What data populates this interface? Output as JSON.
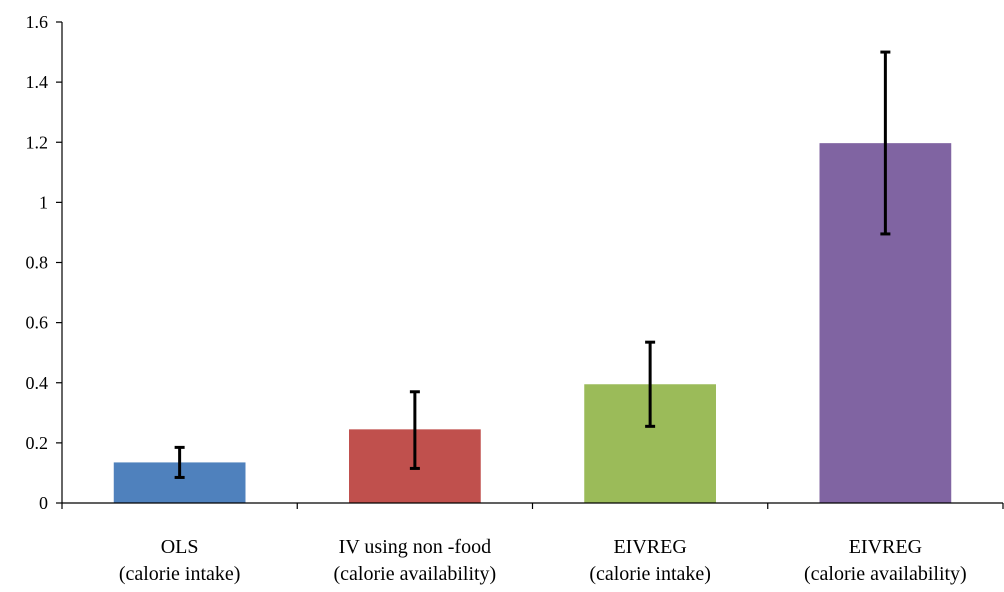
{
  "chart_data": {
    "type": "bar",
    "title": "",
    "xlabel": "",
    "ylabel": "",
    "ylim": [
      0,
      1.6
    ],
    "yticks": [
      "0",
      "0.2",
      "0.4",
      "0.6",
      "0.8",
      "1",
      "1.2",
      "1.4",
      "1.6"
    ],
    "grid": false,
    "legend": "none",
    "categories": [
      {
        "line1": "OLS",
        "line2": "(calorie intake)"
      },
      {
        "line1": "IV using non  -food",
        "line2": "(calorie availability)"
      },
      {
        "line1": "EIVREG",
        "line2": "(calorie intake)"
      },
      {
        "line1": "EIVREG",
        "line2": "(calorie availability)"
      }
    ],
    "values": [
      0.135,
      0.245,
      0.395,
      1.197
    ],
    "error_low": [
      0.085,
      0.115,
      0.255,
      0.895
    ],
    "error_high": [
      0.185,
      0.37,
      0.535,
      1.5
    ],
    "colors": [
      "#4F81BD",
      "#C0504D",
      "#9BBB59",
      "#8064A2"
    ]
  }
}
